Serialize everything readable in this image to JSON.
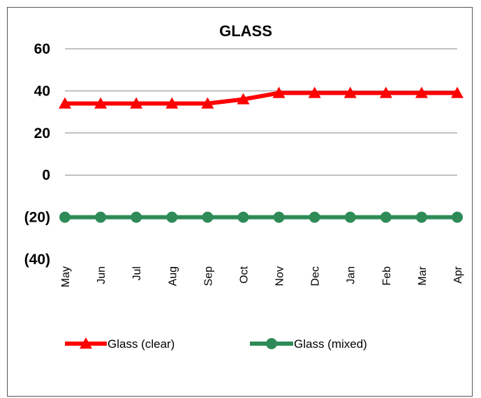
{
  "chart_data": {
    "type": "line",
    "title": "GLASS",
    "xlabel": "",
    "ylabel": "",
    "categories": [
      "May",
      "Jun",
      "Jul",
      "Aug",
      "Sep",
      "Oct",
      "Nov",
      "Dec",
      "Jan",
      "Feb",
      "Mar",
      "Apr"
    ],
    "ylim": [
      -40,
      60
    ],
    "yticks": [
      60,
      40,
      20,
      0,
      -20,
      -40
    ],
    "ytick_labels": [
      "60",
      "40",
      "20",
      "0",
      "(20)",
      "(40)"
    ],
    "grid": true,
    "legend_position": "bottom",
    "series": [
      {
        "name": "Glass (clear)",
        "color": "#ff0000",
        "marker": "triangle",
        "values": [
          34,
          34,
          34,
          34,
          34,
          36,
          39,
          39,
          39,
          39,
          39,
          39
        ]
      },
      {
        "name": "Glass (mixed)",
        "color": "#2e8b57",
        "marker": "circle",
        "values": [
          -20,
          -20,
          -20,
          -20,
          -20,
          -20,
          -20,
          -20,
          -20,
          -20,
          -20,
          -20
        ]
      }
    ]
  }
}
